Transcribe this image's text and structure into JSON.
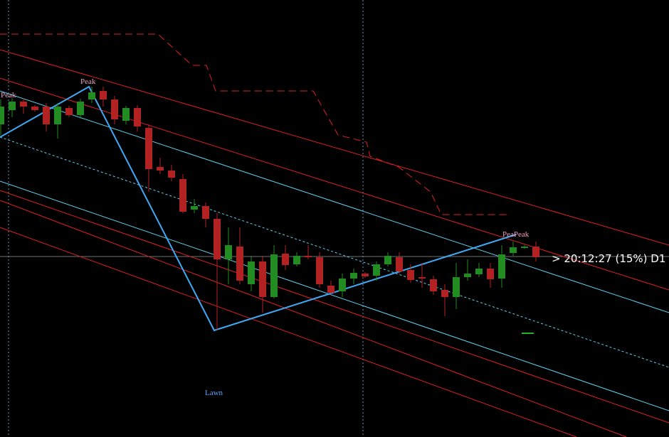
{
  "chart_data": {
    "type": "candlestick",
    "ylim": [
      0,
      615
    ],
    "up_color": "#228b22",
    "down_color": "#b22222",
    "open": [
      440,
      460,
      472,
      465,
      465,
      440,
      463,
      453,
      475,
      487,
      475,
      445,
      463,
      435,
      380,
      375,
      363,
      320,
      325,
      307,
      250,
      268,
      215,
      247,
      197,
      258,
      243,
      255,
      253,
      213,
      205,
      223,
      230,
      227,
      243,
      253,
      235,
      225,
      222,
      207,
      197,
      225,
      229,
      237,
      223,
      259,
      266,
      268
    ],
    "high": [
      475,
      477,
      477,
      467,
      470,
      470,
      466,
      476,
      493,
      493,
      480,
      466,
      467,
      440,
      393,
      383,
      370,
      335,
      330,
      315,
      295,
      295,
      255,
      255,
      270,
      270,
      260,
      270,
      260,
      220,
      230,
      237,
      232,
      247,
      260,
      260,
      243,
      245,
      227,
      215,
      245,
      250,
      245,
      245,
      270,
      275,
      270,
      275
    ],
    "low": [
      425,
      450,
      455,
      458,
      430,
      420,
      450,
      448,
      470,
      465,
      440,
      440,
      430,
      345,
      370,
      360,
      315,
      315,
      295,
      150,
      215,
      215,
      205,
      175,
      195,
      235,
      240,
      250,
      210,
      200,
      197,
      215,
      224,
      220,
      240,
      230,
      217,
      210,
      200,
      170,
      180,
      220,
      225,
      210,
      210,
      255,
      265,
      247
    ],
    "close": [
      465,
      472,
      465,
      460,
      440,
      465,
      453,
      472,
      485,
      475,
      447,
      463,
      437,
      377,
      375,
      365,
      317,
      325,
      307,
      250,
      270,
      220,
      247,
      197,
      257,
      242,
      255,
      253,
      215,
      203,
      223,
      231,
      226,
      243,
      255,
      233,
      221,
      223,
      205,
      197,
      225,
      230,
      237,
      222,
      257,
      267,
      268,
      253
    ],
    "annotations": [
      "Peak",
      "Peak",
      "PeaPeak",
      "Lawn",
      "> 20:12:27 (15%) D1"
    ]
  }
}
